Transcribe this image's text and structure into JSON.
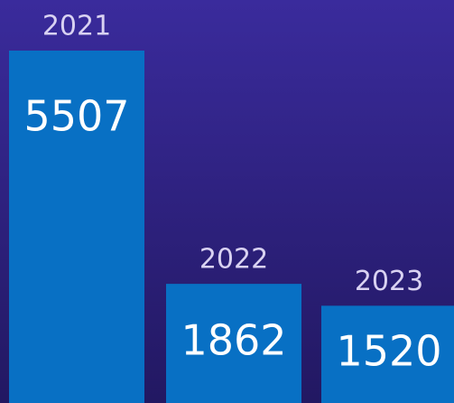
{
  "chart_data": {
    "type": "bar",
    "categories": [
      "2021",
      "2022",
      "2023"
    ],
    "values": [
      5507,
      1862,
      1520
    ],
    "color": "#0870c4"
  }
}
